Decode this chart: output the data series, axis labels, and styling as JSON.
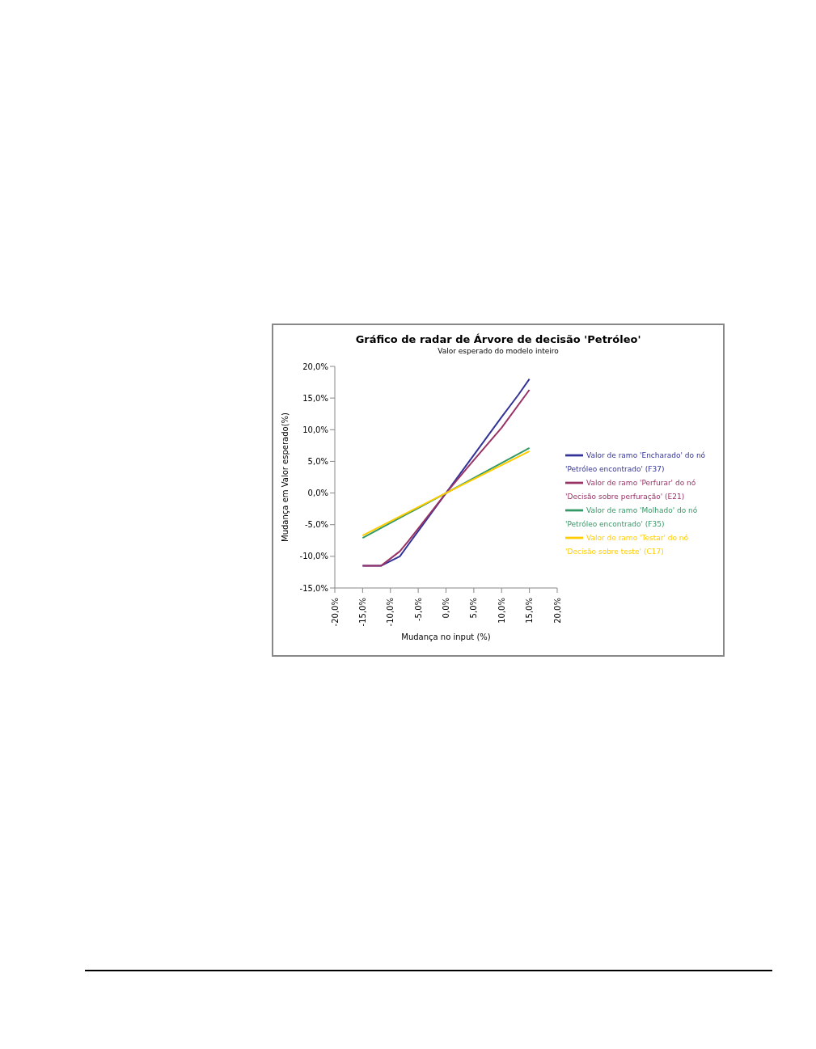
{
  "chart_data": {
    "type": "line",
    "title": "Gráfico de radar de Árvore de decisão 'Petróleo'",
    "subtitle": "Valor esperado do modelo inteiro",
    "xlabel": "Mudança no input (%)",
    "ylabel": "Mudança em Valor esperado(%)",
    "xlim": [
      -20,
      20
    ],
    "xticks": [
      {
        "value": -20,
        "label": "-20,0%"
      },
      {
        "value": -15,
        "label": "-15,0%"
      },
      {
        "value": -10,
        "label": "-10,0%"
      },
      {
        "value": -5,
        "label": "-5,0%"
      },
      {
        "value": 0,
        "label": "0,0%"
      },
      {
        "value": 5,
        "label": "5,0%"
      },
      {
        "value": 10,
        "label": "10,0%"
      },
      {
        "value": 15,
        "label": "15,0%"
      },
      {
        "value": 20,
        "label": "20,0%"
      }
    ],
    "ylim": [
      -15,
      20
    ],
    "yticks": [
      {
        "value": -15,
        "label": "-15,0%"
      },
      {
        "value": -10,
        "label": "-10,0%"
      },
      {
        "value": -5,
        "label": "-5,0%"
      },
      {
        "value": 0,
        "label": "0,0%"
      },
      {
        "value": 5,
        "label": "5,0%"
      },
      {
        "value": 10,
        "label": "10,0%"
      },
      {
        "value": 15,
        "label": "15,0%"
      },
      {
        "value": 20,
        "label": "20,0%"
      }
    ],
    "grid": false,
    "legend": "right",
    "marker": "none",
    "line_style": "solid",
    "series": [
      {
        "name": "Valor de ramo 'Encharado' do nó 'Petróleo encontrado' (F37)",
        "color": "#333399",
        "x": [
          -15,
          -11.7,
          -8.3,
          -5,
          0,
          5,
          10,
          13,
          15
        ],
        "values": [
          -11.5,
          -11.5,
          -10,
          -6,
          0,
          6,
          12,
          15.5,
          18
        ]
      },
      {
        "name": "Valor de ramo 'Perfurar' do nó 'Decisão sobre perfuração' (E21)",
        "color": "#993366",
        "x": [
          -15,
          -11.7,
          -8.3,
          -6.7,
          0,
          5,
          10,
          15
        ],
        "values": [
          -11.5,
          -11.5,
          -9.2,
          -7.5,
          0,
          5.2,
          10.3,
          16.3
        ]
      },
      {
        "name": "Valor de ramo 'Molhado' do nó 'Petróleo encontrado' (F35)",
        "color": "#339966",
        "x": [
          -15,
          0,
          15
        ],
        "values": [
          -7.1,
          0,
          7.1
        ]
      },
      {
        "name": "Valor de ramo 'Testar' do nó 'Decisão sobre teste' (C17)",
        "color": "#ffcc00",
        "x": [
          -15,
          0,
          15
        ],
        "values": [
          -6.7,
          0,
          6.6
        ]
      }
    ]
  }
}
